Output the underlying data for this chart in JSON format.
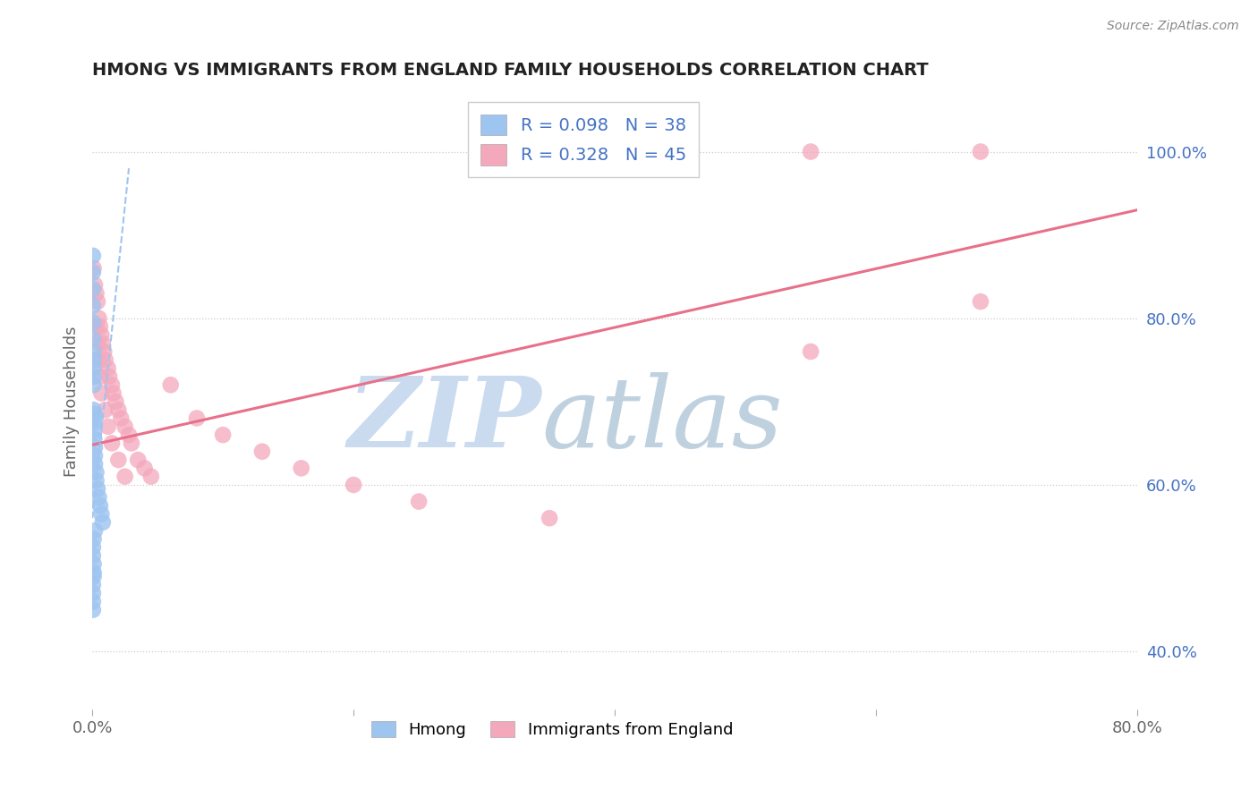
{
  "title": "HMONG VS IMMIGRANTS FROM ENGLAND FAMILY HOUSEHOLDS CORRELATION CHART",
  "source": "Source: ZipAtlas.com",
  "ylabel": "Family Households",
  "xlim": [
    0.0,
    0.8
  ],
  "ylim": [
    0.33,
    1.07
  ],
  "ytick_labels_right": [
    "40.0%",
    "60.0%",
    "80.0%",
    "100.0%"
  ],
  "ytick_positions_right": [
    0.4,
    0.6,
    0.8,
    1.0
  ],
  "legend_labels": [
    "Hmong",
    "Immigrants from England"
  ],
  "hmong_color": "#9ec4f0",
  "england_color": "#f4a8bc",
  "hmong_line_color": "#9ec4f0",
  "england_line_color": "#e8708a",
  "watermark_zip": "ZIP",
  "watermark_atlas": "atlas",
  "watermark_color_zip": "#c5d8ee",
  "watermark_color_atlas": "#b8ccdc",
  "hmong_x": [
    0.0005,
    0.0005,
    0.0005,
    0.0005,
    0.0005,
    0.0005,
    0.001,
    0.001,
    0.001,
    0.001,
    0.001,
    0.001,
    0.001,
    0.0015,
    0.0015,
    0.0015,
    0.0015,
    0.002,
    0.002,
    0.002,
    0.003,
    0.003,
    0.004,
    0.005,
    0.006,
    0.007,
    0.008,
    0.002,
    0.001,
    0.0005,
    0.0005,
    0.001,
    0.001,
    0.001,
    0.0005,
    0.0005,
    0.0005,
    0.0005
  ],
  "hmong_y": [
    0.875,
    0.855,
    0.835,
    0.815,
    0.795,
    0.775,
    0.76,
    0.75,
    0.74,
    0.73,
    0.72,
    0.69,
    0.68,
    0.685,
    0.675,
    0.665,
    0.655,
    0.645,
    0.635,
    0.625,
    0.615,
    0.605,
    0.595,
    0.585,
    0.575,
    0.565,
    0.555,
    0.545,
    0.535,
    0.525,
    0.515,
    0.505,
    0.495,
    0.49,
    0.48,
    0.47,
    0.46,
    0.45
  ],
  "england_x": [
    0.001,
    0.002,
    0.003,
    0.004,
    0.005,
    0.006,
    0.007,
    0.008,
    0.009,
    0.01,
    0.012,
    0.013,
    0.015,
    0.016,
    0.018,
    0.02,
    0.022,
    0.025,
    0.028,
    0.03,
    0.035,
    0.04,
    0.045,
    0.003,
    0.004,
    0.005,
    0.006,
    0.007,
    0.01,
    0.012,
    0.015,
    0.02,
    0.025,
    0.06,
    0.08,
    0.1,
    0.13,
    0.16,
    0.2,
    0.25,
    0.35,
    0.55,
    0.68,
    0.68,
    0.55
  ],
  "england_y": [
    0.86,
    0.84,
    0.83,
    0.82,
    0.8,
    0.79,
    0.78,
    0.77,
    0.76,
    0.75,
    0.74,
    0.73,
    0.72,
    0.71,
    0.7,
    0.69,
    0.68,
    0.67,
    0.66,
    0.65,
    0.63,
    0.62,
    0.61,
    0.79,
    0.77,
    0.75,
    0.73,
    0.71,
    0.69,
    0.67,
    0.65,
    0.63,
    0.61,
    0.72,
    0.68,
    0.66,
    0.64,
    0.62,
    0.6,
    0.58,
    0.56,
    1.0,
    1.0,
    0.82,
    0.76
  ],
  "england_trend_x": [
    0.0,
    0.8
  ],
  "england_trend_y": [
    0.648,
    0.93
  ],
  "hmong_trend_x": [
    0.0,
    0.028
  ],
  "hmong_trend_y": [
    0.56,
    0.98
  ]
}
